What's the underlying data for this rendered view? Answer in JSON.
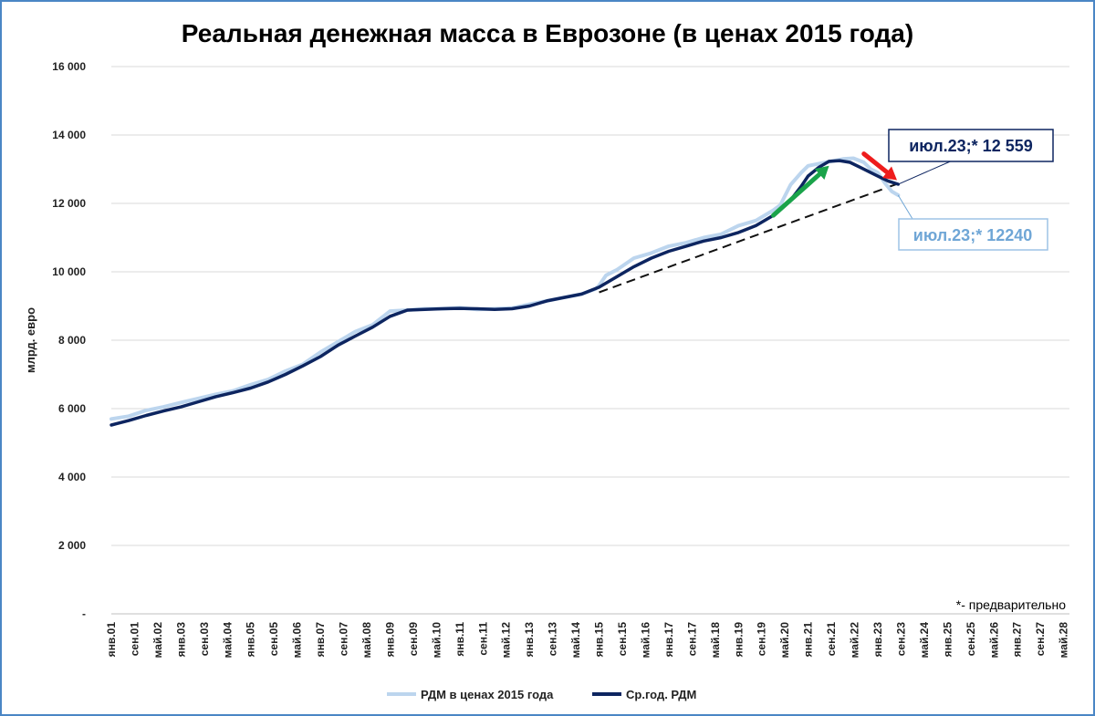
{
  "chart_data": {
    "type": "line",
    "title": "Реальная денежная масса в Еврозоне (в ценах 2015 года)",
    "ylabel": "млрд. евро",
    "xlabel": "",
    "ylim": [
      0,
      16000
    ],
    "yticks": [
      {
        "value": 0,
        "label": "-"
      },
      {
        "value": 2000,
        "label": "2 000"
      },
      {
        "value": 4000,
        "label": "4 000"
      },
      {
        "value": 6000,
        "label": "6 000"
      },
      {
        "value": 8000,
        "label": "8 000"
      },
      {
        "value": 10000,
        "label": "10 000"
      },
      {
        "value": 12000,
        "label": "12 000"
      },
      {
        "value": 14000,
        "label": "14 000"
      },
      {
        "value": 16000,
        "label": "16 000"
      }
    ],
    "x_range": [
      2001.0,
      2028.5
    ],
    "xticks": [
      {
        "t": 2001.0,
        "label": "янв.01"
      },
      {
        "t": 2001.667,
        "label": "сен.01"
      },
      {
        "t": 2002.333,
        "label": "май.02"
      },
      {
        "t": 2003.0,
        "label": "янв.03"
      },
      {
        "t": 2003.667,
        "label": "сен.03"
      },
      {
        "t": 2004.333,
        "label": "май.04"
      },
      {
        "t": 2005.0,
        "label": "янв.05"
      },
      {
        "t": 2005.667,
        "label": "сен.05"
      },
      {
        "t": 2006.333,
        "label": "май.06"
      },
      {
        "t": 2007.0,
        "label": "янв.07"
      },
      {
        "t": 2007.667,
        "label": "сен.07"
      },
      {
        "t": 2008.333,
        "label": "май.08"
      },
      {
        "t": 2009.0,
        "label": "янв.09"
      },
      {
        "t": 2009.667,
        "label": "сен.09"
      },
      {
        "t": 2010.333,
        "label": "май.10"
      },
      {
        "t": 2011.0,
        "label": "янв.11"
      },
      {
        "t": 2011.667,
        "label": "сен.11"
      },
      {
        "t": 2012.333,
        "label": "май.12"
      },
      {
        "t": 2013.0,
        "label": "янв.13"
      },
      {
        "t": 2013.667,
        "label": "сен.13"
      },
      {
        "t": 2014.333,
        "label": "май.14"
      },
      {
        "t": 2015.0,
        "label": "янв.15"
      },
      {
        "t": 2015.667,
        "label": "сен.15"
      },
      {
        "t": 2016.333,
        "label": "май.16"
      },
      {
        "t": 2017.0,
        "label": "янв.17"
      },
      {
        "t": 2017.667,
        "label": "сен.17"
      },
      {
        "t": 2018.333,
        "label": "май.18"
      },
      {
        "t": 2019.0,
        "label": "янв.19"
      },
      {
        "t": 2019.667,
        "label": "сен.19"
      },
      {
        "t": 2020.333,
        "label": "май.20"
      },
      {
        "t": 2021.0,
        "label": "янв.21"
      },
      {
        "t": 2021.667,
        "label": "сен.21"
      },
      {
        "t": 2022.333,
        "label": "май.22"
      },
      {
        "t": 2023.0,
        "label": "янв.23"
      },
      {
        "t": 2023.667,
        "label": "сен.23"
      },
      {
        "t": 2024.333,
        "label": "май.24"
      },
      {
        "t": 2025.0,
        "label": "янв.25"
      },
      {
        "t": 2025.667,
        "label": "сен.25"
      },
      {
        "t": 2026.333,
        "label": "май.26"
      },
      {
        "t": 2027.0,
        "label": "янв.27"
      },
      {
        "t": 2027.667,
        "label": "сен.27"
      },
      {
        "t": 2028.333,
        "label": "май.28"
      }
    ],
    "series": [
      {
        "name": "РДМ в ценах 2015 года",
        "color": "#bcd5ee",
        "x": [
          2001.0,
          2001.5,
          2002.0,
          2002.5,
          2003.0,
          2003.5,
          2004.0,
          2004.5,
          2005.0,
          2005.5,
          2006.0,
          2006.5,
          2007.0,
          2007.5,
          2008.0,
          2008.5,
          2009.0,
          2009.5,
          2010.0,
          2010.5,
          2011.0,
          2011.5,
          2012.0,
          2012.5,
          2013.0,
          2013.5,
          2014.0,
          2014.5,
          2014.9,
          2015.0,
          2015.2,
          2015.5,
          2016.0,
          2016.5,
          2017.0,
          2017.5,
          2018.0,
          2018.5,
          2019.0,
          2019.5,
          2020.0,
          2020.2,
          2020.5,
          2020.8,
          2021.0,
          2021.5,
          2022.0,
          2022.3,
          2022.6,
          2022.8,
          2023.0,
          2023.2,
          2023.4,
          2023.583
        ],
        "y": [
          5700,
          5780,
          5950,
          6050,
          6180,
          6300,
          6420,
          6520,
          6700,
          6850,
          7100,
          7300,
          7650,
          7950,
          8250,
          8450,
          8850,
          8880,
          8920,
          8920,
          8950,
          8900,
          8920,
          8940,
          9050,
          9150,
          9250,
          9350,
          9500,
          9600,
          9900,
          10050,
          10400,
          10550,
          10750,
          10850,
          11000,
          11100,
          11350,
          11500,
          11800,
          11950,
          12550,
          12900,
          13100,
          13200,
          13300,
          13320,
          13200,
          13000,
          12900,
          12600,
          12350,
          12240
        ]
      },
      {
        "name": "Ср.год. РДМ",
        "color": "#0d2560",
        "x": [
          2001.0,
          2001.5,
          2002.0,
          2002.5,
          2003.0,
          2003.5,
          2004.0,
          2004.5,
          2005.0,
          2005.5,
          2006.0,
          2006.5,
          2007.0,
          2007.5,
          2008.0,
          2008.5,
          2009.0,
          2009.5,
          2010.0,
          2010.5,
          2011.0,
          2011.5,
          2012.0,
          2012.5,
          2013.0,
          2013.5,
          2014.0,
          2014.5,
          2015.0,
          2015.5,
          2016.0,
          2016.5,
          2017.0,
          2017.5,
          2018.0,
          2018.5,
          2019.0,
          2019.5,
          2020.0,
          2020.5,
          2020.8,
          2021.0,
          2021.3,
          2021.6,
          2021.9,
          2022.2,
          2022.5,
          2022.8,
          2023.1,
          2023.3,
          2023.583
        ],
        "y": [
          5520,
          5650,
          5800,
          5930,
          6050,
          6200,
          6350,
          6470,
          6600,
          6780,
          7000,
          7250,
          7520,
          7850,
          8120,
          8380,
          8700,
          8880,
          8900,
          8920,
          8930,
          8920,
          8900,
          8920,
          9000,
          9150,
          9250,
          9350,
          9550,
          9850,
          10150,
          10400,
          10600,
          10750,
          10900,
          11000,
          11150,
          11350,
          11650,
          12100,
          12500,
          12800,
          13050,
          13230,
          13250,
          13200,
          13050,
          12900,
          12750,
          12650,
          12559
        ]
      }
    ],
    "trend_line": {
      "x": [
        2015.0,
        2023.583
      ],
      "y": [
        9400,
        12580
      ],
      "style": "dashed"
    },
    "arrows": [
      {
        "color": "#1aa34a",
        "from": [
          2020.0,
          11650
        ],
        "to": [
          2021.6,
          13100
        ]
      },
      {
        "color": "#ee1c1c",
        "from": [
          2022.6,
          13450
        ],
        "to": [
          2023.55,
          12680
        ]
      }
    ],
    "annotations": [
      {
        "text": "июл.23;*  12 559",
        "series": "Ср.год. РДМ",
        "x": 2023.583,
        "y": 12559
      },
      {
        "text": "июл.23;* 12240",
        "series": "РДМ в ценах 2015 года",
        "x": 2023.583,
        "y": 12240
      }
    ],
    "footnote": "*- предварительно",
    "legend_position": "bottom"
  }
}
